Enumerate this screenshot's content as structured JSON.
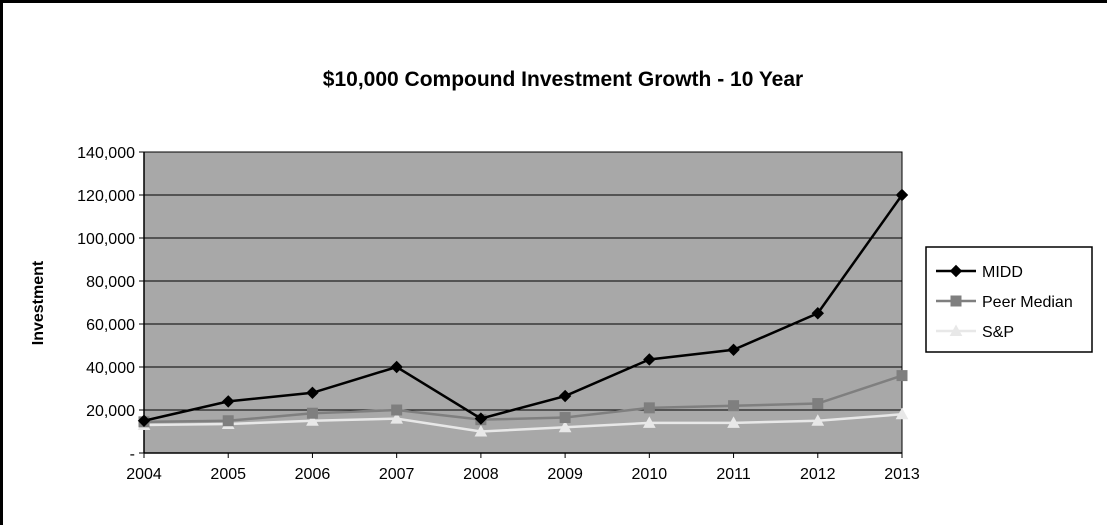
{
  "chart_data": {
    "type": "line",
    "title": "$10,000 Compound Investment Growth - 10 Year",
    "xlabel": "",
    "ylabel": "Investment",
    "categories": [
      "2004",
      "2005",
      "2006",
      "2007",
      "2008",
      "2009",
      "2010",
      "2011",
      "2012",
      "2013"
    ],
    "y_tick_labels": [
      "-",
      "20,000",
      "40,000",
      "60,000",
      "80,000",
      "100,000",
      "120,000",
      "140,000"
    ],
    "ylim": [
      0,
      140000
    ],
    "grid": true,
    "legend_position": "right",
    "plot_background": "#a8a8a8",
    "series": [
      {
        "name": "MIDD",
        "color": "#000000",
        "marker": "diamond",
        "values": [
          15000,
          24000,
          28000,
          40000,
          16000,
          26500,
          43500,
          48000,
          65000,
          120000
        ]
      },
      {
        "name": "Peer Median",
        "color": "#7f7f7f",
        "marker": "square",
        "values": [
          14500,
          15000,
          18500,
          20000,
          15500,
          16500,
          21000,
          22000,
          23000,
          36000
        ]
      },
      {
        "name": "S&P",
        "color": "#e8e8e8",
        "marker": "triangle",
        "values": [
          13000,
          13500,
          15000,
          16000,
          10000,
          12000,
          14000,
          14000,
          15000,
          18000
        ]
      }
    ]
  }
}
